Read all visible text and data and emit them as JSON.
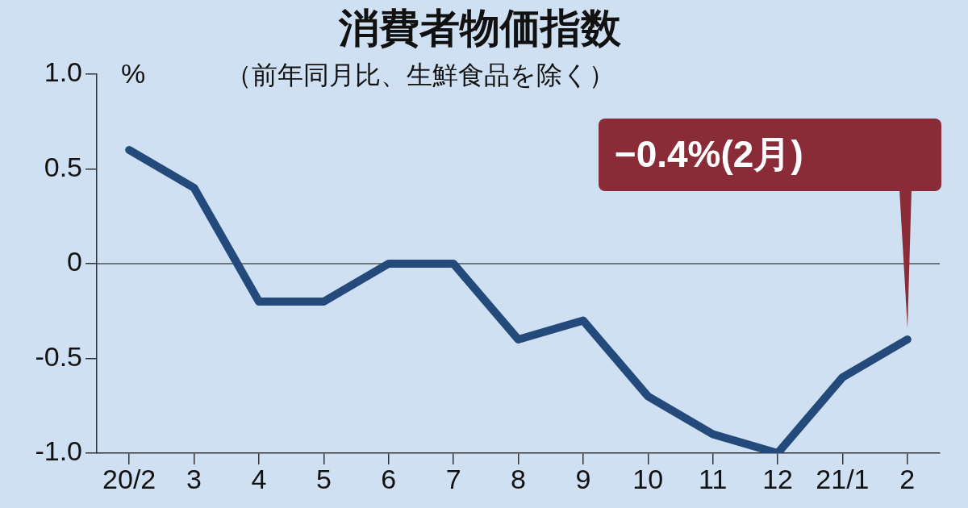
{
  "chart_data": {
    "type": "line",
    "title": "消費者物価指数",
    "subtitle": "（前年同月比、生鮮食品を除く）",
    "ylabel": "%",
    "categories": [
      "20/2",
      "3",
      "4",
      "5",
      "6",
      "7",
      "8",
      "9",
      "10",
      "11",
      "12",
      "21/1",
      "2"
    ],
    "series": [
      {
        "color": "#244a7c",
        "values": [
          0.6,
          0.4,
          -0.2,
          -0.2,
          0,
          0,
          -0.4,
          -0.3,
          -0.7,
          -0.9,
          -1.0,
          -0.6,
          -0.4
        ]
      }
    ],
    "ylim": [
      -1.0,
      1.0
    ],
    "yticks": [
      {
        "value": 1.0,
        "label": "1.0"
      },
      0.5,
      0,
      -0.5,
      {
        "value": -1.0,
        "label": "-1.0"
      }
    ],
    "grid": false,
    "legend": false,
    "marker": "none",
    "line_style": "solid",
    "ref_lines": [
      {
        "axis": "y",
        "value": 0,
        "color": "#555555"
      }
    ],
    "annotations": [
      "−0.4%(2月)"
    ]
  }
}
